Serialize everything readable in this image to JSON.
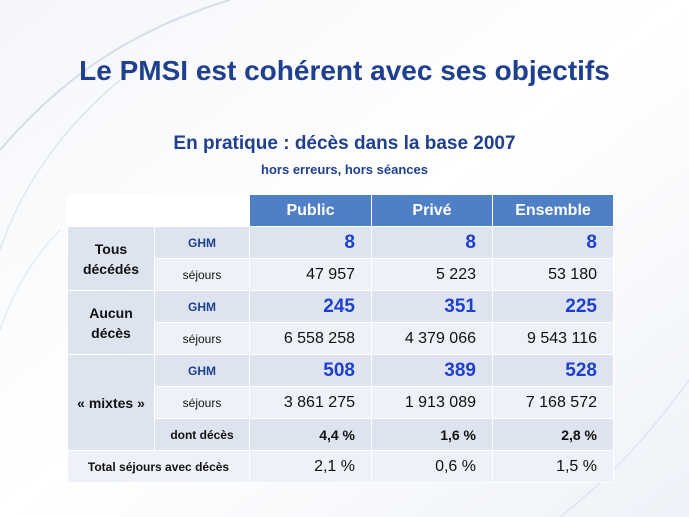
{
  "title": "Le PMSI est cohérent avec ses objectifs",
  "subtitle": "En pratique : décès dans la base 2007",
  "subsubtitle": "hors erreurs, hors séances",
  "table": {
    "columns": [
      "Public",
      "Privé",
      "Ensemble"
    ],
    "groups": [
      {
        "label_line1": "Tous",
        "label_line2": "décédés",
        "ghm_label": "GHM",
        "ghm": [
          "8",
          "8",
          "8"
        ],
        "sejours_label": "séjours",
        "sejours": [
          "47 957",
          "5 223",
          "53 180"
        ]
      },
      {
        "label_line1": "Aucun",
        "label_line2": "décès",
        "ghm_label": "GHM",
        "ghm": [
          "245",
          "351",
          "225"
        ],
        "sejours_label": "séjours",
        "sejours": [
          "6 558 258",
          "4 379 066",
          "9 543 116"
        ]
      },
      {
        "label_line1": "« mixtes »",
        "ghm_label": "GHM",
        "ghm": [
          "508",
          "389",
          "528"
        ],
        "sejours_label": "séjours",
        "sejours": [
          "3 861 275",
          "1 913 089",
          "7 168 572"
        ],
        "dont_label": "dont décès",
        "dont": [
          "4,4 %",
          "1,6 %",
          "2,8 %"
        ]
      }
    ],
    "total_label": "Total séjours avec décès",
    "total": [
      "2,1 %",
      "0,6 %",
      "1,5 %"
    ]
  },
  "colors": {
    "title": "#1f3f8f",
    "header_bg": "#4f7fc4",
    "ghm_value": "#1f3fcf"
  }
}
